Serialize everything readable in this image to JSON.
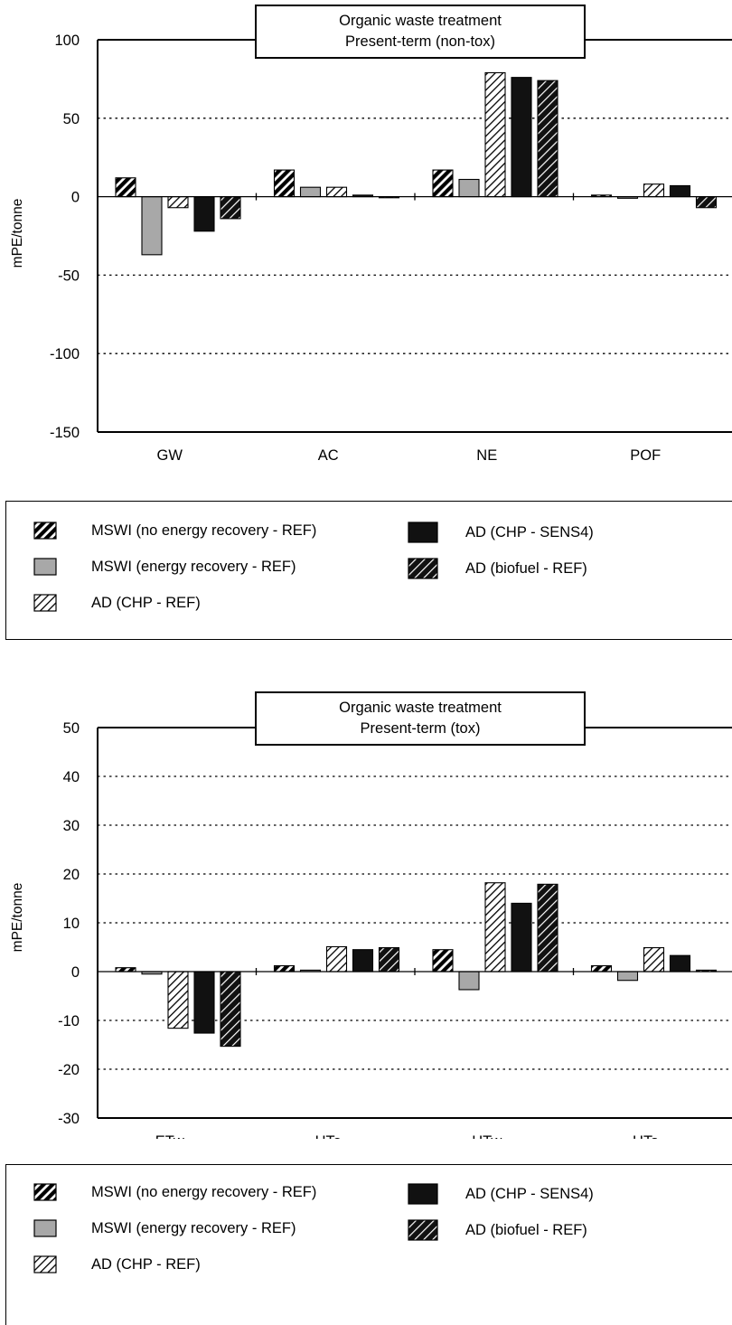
{
  "chart_data": [
    {
      "type": "bar",
      "title": "Organic waste treatment",
      "subtitle": "Present-term (non-tox)",
      "ylabel": "mPE/tonne",
      "xlabel": "",
      "ylim": [
        -150,
        100
      ],
      "yticks": [
        100,
        50,
        0,
        -50,
        -100,
        -150
      ],
      "categories": [
        "GW",
        "AC",
        "NE",
        "POF"
      ],
      "grid": "dotted horizontal",
      "series": [
        {
          "name": "MSWI (no energy recovery - REF)",
          "pattern": "hatch-dense-black",
          "values": [
            12,
            17,
            17,
            1
          ]
        },
        {
          "name": "MSWI (energy recovery - REF)",
          "pattern": "solid-gray",
          "values": [
            -37,
            6,
            11,
            -1
          ]
        },
        {
          "name": "AD (CHP - REF)",
          "pattern": "hatch-light",
          "values": [
            -7,
            6,
            79,
            8
          ]
        },
        {
          "name": "AD (CHP - SENS4)",
          "pattern": "solid-black",
          "values": [
            -22,
            1,
            76,
            7
          ]
        },
        {
          "name": "AD (biofuel - REF)",
          "pattern": "hatch-black",
          "values": [
            -14,
            0,
            74,
            -7
          ]
        }
      ]
    },
    {
      "type": "bar",
      "title": "Organic waste treatment",
      "subtitle": "Present-term (tox)",
      "ylabel": "mPE/tonne",
      "xlabel": "",
      "ylim": [
        -30,
        50
      ],
      "yticks": [
        50,
        40,
        30,
        20,
        10,
        0,
        -10,
        -20,
        -30
      ],
      "categories": [
        "ETw",
        "HTa",
        "HTw",
        "HTs"
      ],
      "grid": "dotted horizontal",
      "series": [
        {
          "name": "MSWI (no energy recovery - REF)",
          "pattern": "hatch-dense-black",
          "values": [
            0.8,
            1.2,
            4.5,
            1.2
          ]
        },
        {
          "name": "MSWI (energy recovery - REF)",
          "pattern": "solid-gray",
          "values": [
            -0.5,
            0.3,
            -3.7,
            -1.8
          ]
        },
        {
          "name": "AD (CHP - REF)",
          "pattern": "hatch-light",
          "values": [
            -11.6,
            5.1,
            18.2,
            4.9
          ]
        },
        {
          "name": "AD (CHP - SENS4)",
          "pattern": "solid-black",
          "values": [
            -12.6,
            4.5,
            14,
            3.3
          ]
        },
        {
          "name": "AD (biofuel - REF)",
          "pattern": "hatch-black",
          "values": [
            -15.3,
            4.9,
            17.9,
            0.3
          ]
        }
      ]
    }
  ],
  "legends": [
    {
      "items": [
        {
          "label": "MSWI (no energy recovery - REF)",
          "pattern": "hatch-dense-black"
        },
        {
          "label": "MSWI (energy recovery - REF)",
          "pattern": "solid-gray"
        },
        {
          "label": "AD (CHP - REF)",
          "pattern": "hatch-light"
        },
        {
          "label": "AD (CHP - SENS4)",
          "pattern": "solid-black"
        },
        {
          "label": "AD (biofuel - REF)",
          "pattern": "hatch-black"
        }
      ]
    },
    {
      "items": [
        {
          "label": "MSWI (no energy recovery - REF)",
          "pattern": "hatch-dense-black"
        },
        {
          "label": "MSWI (energy recovery - REF)",
          "pattern": "solid-gray"
        },
        {
          "label": "AD (CHP - REF)",
          "pattern": "hatch-light"
        },
        {
          "label": "AD (CHP - SENS4)",
          "pattern": "solid-black"
        },
        {
          "label": "AD (biofuel - REF)",
          "pattern": "hatch-black"
        }
      ]
    }
  ],
  "colors": {
    "solid_gray": "#a8a8a8",
    "solid_black": "#111111",
    "axis": "#000000"
  }
}
